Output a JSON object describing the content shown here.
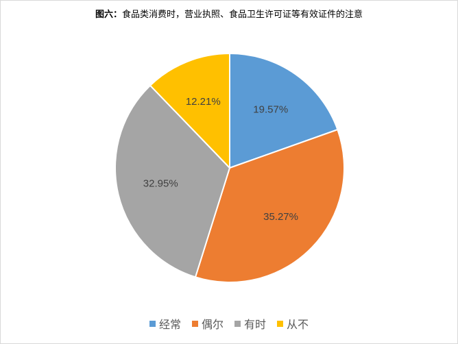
{
  "title_prefix": "图六：",
  "title_text": "食品类消费时，营业执照、食品卫生许可证等有效证件的注意",
  "chart_data": {
    "type": "pie",
    "categories": [
      "经常",
      "偶尔",
      "有时",
      "从不"
    ],
    "values": [
      19.57,
      35.27,
      32.95,
      12.21
    ],
    "value_labels": [
      "19.57%",
      "35.27%",
      "32.95%",
      "12.21%"
    ],
    "colors": [
      "#5b9bd5",
      "#ed7d31",
      "#a5a5a5",
      "#ffc000"
    ],
    "title": "图六：食品类消费时，营业执照、食品卫生许可证等有效证件的注意",
    "start_angle": "12 o'clock",
    "direction": "clockwise",
    "legend_position": "bottom"
  }
}
